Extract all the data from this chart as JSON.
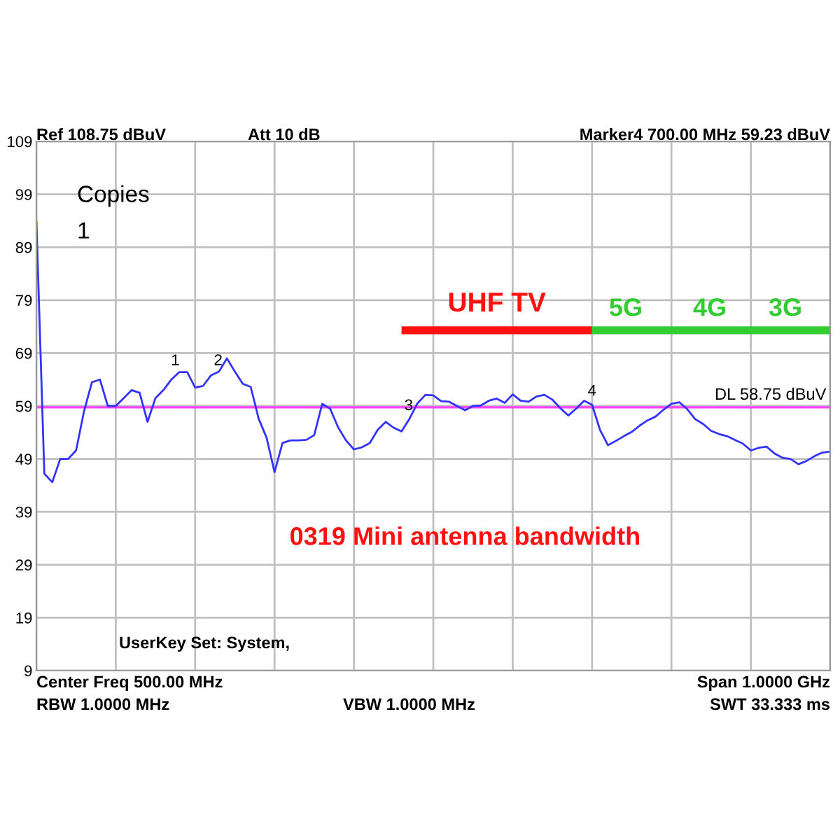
{
  "chart_data": {
    "type": "line",
    "title": "0319 Mini antenna bandwidth",
    "categories": [
      null,
      null,
      null,
      null,
      null,
      null,
      null,
      null,
      null,
      null,
      null,
      null,
      null,
      null,
      null,
      null,
      null,
      null,
      null,
      null,
      null,
      null,
      null,
      null,
      null,
      null,
      null,
      null,
      null,
      null,
      null,
      null,
      null,
      null,
      null,
      null,
      null,
      null,
      null,
      null,
      null,
      null,
      null,
      null,
      null,
      null,
      null,
      null,
      null,
      null,
      null,
      null,
      null,
      null,
      null,
      null,
      null,
      null,
      null,
      null,
      null,
      null,
      null,
      null,
      null,
      null,
      null,
      null,
      null,
      null,
      null,
      null,
      null,
      null,
      null,
      null,
      null,
      null,
      null,
      null,
      null,
      null,
      null,
      null,
      null,
      null,
      null,
      null,
      null,
      null,
      null,
      null,
      null,
      null,
      null,
      null,
      null,
      null,
      null,
      null,
      null
    ],
    "series": [
      {
        "color": "#3333ff",
        "values": [
          94,
          46.2,
          44.6,
          49,
          49,
          50.6,
          58,
          63.5,
          64,
          59,
          59,
          60.5,
          62,
          61.5,
          56,
          60.5,
          62,
          64,
          65.4,
          65.4,
          62.5,
          62.8,
          64.8,
          65.5,
          68,
          65.5,
          63.2,
          62.6,
          56.6,
          53,
          46.5,
          52,
          52.5,
          52.5,
          52.6,
          53.5,
          59.4,
          58.5,
          55,
          52.5,
          50.8,
          51.2,
          52,
          54.5,
          56,
          54.9,
          54.2,
          56.6,
          59.5,
          61.1,
          61,
          59.9,
          59.8,
          59,
          58.2,
          59,
          59.1,
          60,
          60.4,
          59.6,
          61.2,
          60,
          59.8,
          60.8,
          61.1,
          60.2,
          58.6,
          57.2,
          58.5,
          60,
          59.23,
          54.5,
          51.6,
          52.4,
          53.3,
          54.1,
          55.3,
          56.3,
          57,
          58.3,
          59.4,
          59.7,
          58.4,
          56.5,
          55.6,
          54.3,
          53.7,
          53.3,
          52.6,
          51.9,
          50.6,
          51.1,
          51.3,
          50,
          49.2,
          49,
          48,
          48.6,
          49.5,
          50.2,
          50.4
        ]
      },
      {
        "name": "UHF TV",
        "color": "#ff1111",
        "values": [
          null,
          null,
          null,
          null,
          null,
          null,
          null,
          null,
          null,
          null,
          null,
          null,
          null,
          null,
          null,
          null,
          null,
          null,
          null,
          null,
          null,
          null,
          null,
          null,
          null,
          null,
          null,
          null,
          null,
          null,
          null,
          null,
          null,
          null,
          null,
          null,
          null,
          null,
          null,
          null,
          null,
          null,
          null,
          null,
          null,
          null,
          73.3,
          73.3,
          73.3,
          73.3,
          73.3,
          73.3,
          73.3,
          73.3,
          73.3,
          73.3,
          73.3,
          73.3,
          73.3,
          73.3,
          73.3,
          73.3,
          73.3,
          73.3,
          73.3,
          73.3,
          73.3,
          73.3,
          73.3,
          73.3,
          73.3,
          null,
          null,
          null,
          null,
          null,
          null,
          null,
          null,
          null,
          null,
          null,
          null,
          null,
          null,
          null,
          null,
          null,
          null,
          null,
          null,
          null,
          null,
          null,
          null,
          null,
          null,
          null,
          null,
          null,
          null
        ]
      },
      {
        "color": "#33cc33",
        "values": [
          null,
          null,
          null,
          null,
          null,
          null,
          null,
          null,
          null,
          null,
          null,
          null,
          null,
          null,
          null,
          null,
          null,
          null,
          null,
          null,
          null,
          null,
          null,
          null,
          null,
          null,
          null,
          null,
          null,
          null,
          null,
          null,
          null,
          null,
          null,
          null,
          null,
          null,
          null,
          null,
          null,
          null,
          null,
          null,
          null,
          null,
          null,
          null,
          null,
          null,
          null,
          null,
          null,
          null,
          null,
          null,
          null,
          null,
          null,
          null,
          null,
          null,
          null,
          null,
          null,
          null,
          null,
          null,
          null,
          null,
          73.3,
          73.3,
          73.3,
          73.3,
          73.3,
          73.3,
          73.3,
          73.3,
          73.3,
          73.3,
          73.3,
          73.3,
          73.3,
          73.3,
          73.3,
          73.3,
          73.3,
          73.3,
          73.3,
          73.3,
          73.3,
          73.3,
          73.3,
          73.3,
          73.3,
          73.3,
          73.3,
          73.3,
          73.3,
          73.3,
          73.3
        ]
      }
    ],
    "ylim": [
      9,
      109
    ],
    "yticks": [
      9,
      19,
      29,
      39,
      49,
      59,
      69,
      79,
      89,
      99,
      109
    ],
    "tick_labels": "y",
    "grid": true,
    "ref_lines": [
      {
        "axis": "y",
        "value": 58.75,
        "label": "DL 58.75 dBuV",
        "color": "#ff44ff"
      }
    ],
    "annotations": [
      "Ref 108.75 dBuV",
      "Att 10 dB",
      "Marker4 700.00 MHz 59.23 dBuV",
      "Copies",
      "1",
      "UserKey Set: System,",
      "Center Freq 500.00 MHz",
      "Span 1.0000 GHz",
      "RBW 1.0000 MHz",
      "VBW 1.0000 MHz",
      "SWT 33.333 ms",
      {
        "text": "1",
        "y": 65
      },
      {
        "text": "2",
        "y": 65
      },
      {
        "text": "3",
        "y": 56.5
      },
      {
        "text": "4",
        "y": 59.23
      },
      "5G",
      "4G",
      "3G"
    ]
  }
}
